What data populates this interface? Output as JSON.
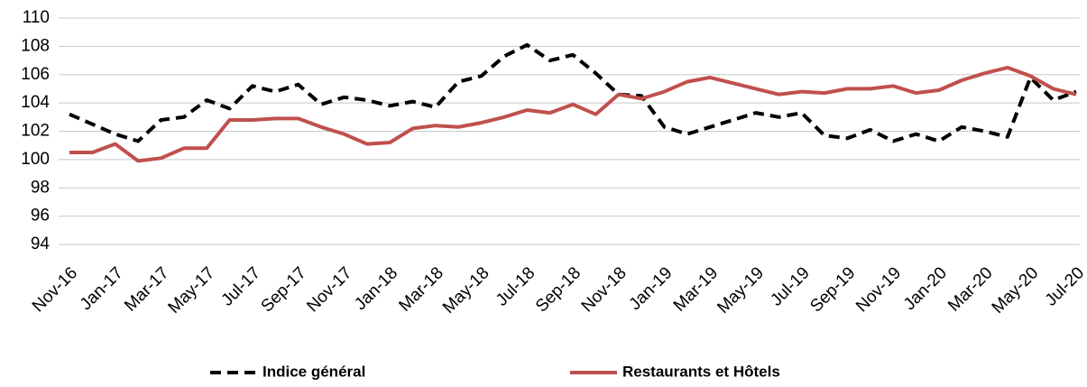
{
  "chart_data": {
    "type": "line",
    "categories": [
      "Nov-16",
      null,
      "Jan-17",
      null,
      "Mar-17",
      null,
      "May-17",
      null,
      "Jul-17",
      null,
      "Sep-17",
      null,
      "Nov-17",
      null,
      "Jan-18",
      null,
      "Mar-18",
      null,
      "May-18",
      null,
      "Jul-18",
      null,
      "Sep-18",
      null,
      "Nov-18",
      null,
      "Jan-19",
      null,
      "Mar-19",
      null,
      "May-19",
      null,
      "Jul-19",
      null,
      "Sep-19",
      null,
      "Nov-19",
      null,
      "Jan-20",
      null,
      "Mar-20",
      null,
      "May-20",
      null,
      "Jul-20"
    ],
    "series": [
      {
        "name": "Indice général",
        "color": "#000000",
        "dashed": true,
        "values": [
          103.2,
          102.5,
          101.8,
          101.3,
          102.8,
          103.0,
          104.2,
          103.6,
          105.2,
          104.8,
          105.3,
          103.9,
          104.4,
          104.2,
          103.8,
          104.1,
          103.7,
          105.5,
          105.9,
          107.3,
          108.1,
          107.0,
          107.4,
          106.1,
          104.6,
          104.5,
          102.3,
          101.8,
          102.3,
          102.8,
          103.3,
          103.0,
          103.3,
          101.7,
          101.5,
          102.1,
          101.3,
          101.8,
          101.3,
          102.3,
          102.0,
          101.6,
          105.8,
          104.2,
          104.8
        ]
      },
      {
        "name": "Restaurants et Hôtels",
        "color": "#c0504d",
        "dashed": false,
        "values": [
          100.5,
          100.5,
          101.1,
          99.9,
          100.1,
          100.8,
          100.8,
          102.8,
          102.8,
          102.9,
          102.9,
          102.3,
          101.8,
          101.1,
          101.2,
          102.2,
          102.4,
          102.3,
          102.6,
          103.0,
          103.5,
          103.3,
          103.9,
          103.2,
          104.6,
          104.3,
          104.8,
          105.5,
          105.8,
          105.4,
          105.0,
          104.6,
          104.8,
          104.7,
          105.0,
          105.0,
          105.2,
          104.7,
          104.9,
          105.6,
          106.1,
          106.5,
          105.9,
          105.0,
          104.6
        ]
      }
    ],
    "ylim": [
      94,
      110
    ],
    "yticks": [
      94,
      96,
      98,
      100,
      102,
      104,
      106,
      108,
      110
    ],
    "grid": true,
    "legend": "bottom"
  }
}
